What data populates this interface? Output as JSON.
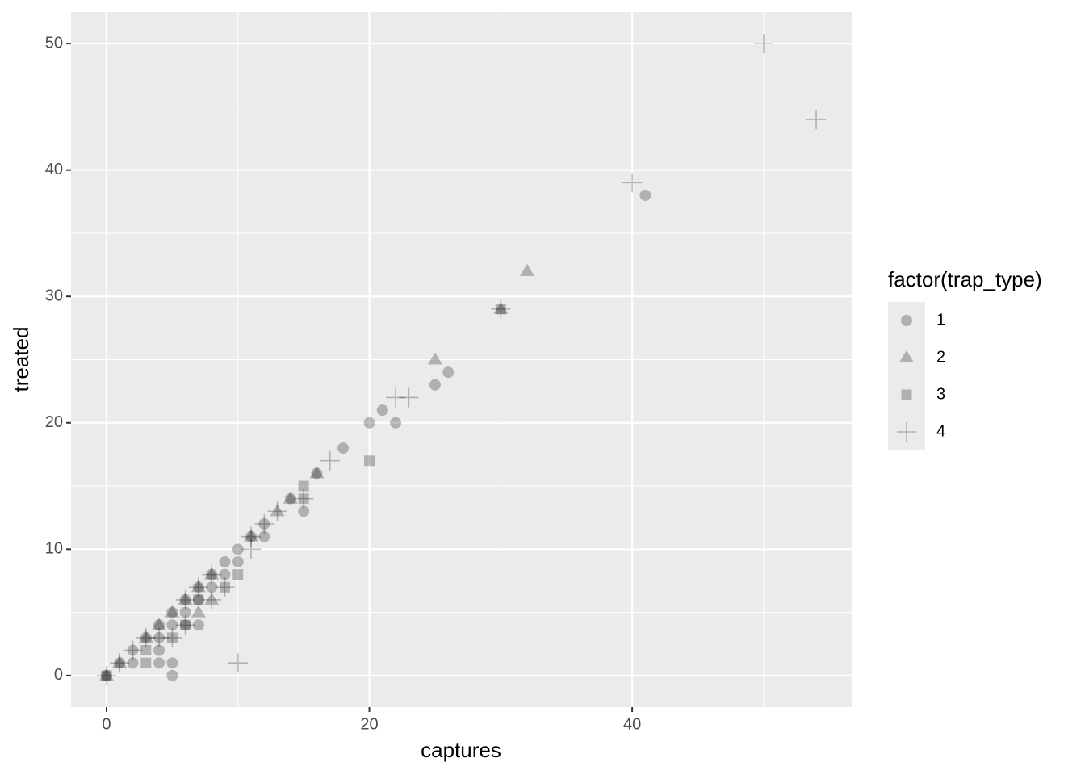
{
  "chart_data": {
    "type": "scatter",
    "x_label": "captures",
    "y_label": "treated",
    "legend_title": "factor(trap_type)",
    "legend_position": "right",
    "xlim": [
      -2.7,
      56.7
    ],
    "ylim": [
      -2.5,
      52.5
    ],
    "xticks": [
      0,
      20,
      40
    ],
    "yticks": [
      0,
      10,
      20,
      30,
      40,
      50
    ],
    "xminor": [
      10,
      30,
      50
    ],
    "yminor": [
      5,
      15,
      25,
      35,
      45
    ],
    "grid": true,
    "alpha": 0.25,
    "series": [
      {
        "name": "1",
        "shape": "circle",
        "color": "#000000",
        "x": [
          0,
          1,
          2,
          2,
          3,
          4,
          4,
          4,
          4,
          5,
          5,
          5,
          5,
          6,
          6,
          6,
          7,
          7,
          7,
          8,
          8,
          9,
          9,
          10,
          10,
          11,
          12,
          12,
          14,
          15,
          16,
          18,
          20,
          21,
          22,
          25,
          26,
          41
        ],
        "values": [
          0,
          1,
          2,
          1,
          3,
          4,
          3,
          2,
          1,
          5,
          4,
          1,
          0,
          6,
          5,
          4,
          7,
          6,
          4,
          8,
          7,
          9,
          8,
          10,
          9,
          11,
          12,
          11,
          14,
          13,
          16,
          18,
          20,
          21,
          20,
          23,
          24,
          38
        ]
      },
      {
        "name": "2",
        "shape": "triangle",
        "color": "#000000",
        "x": [
          0,
          1,
          3,
          4,
          5,
          6,
          7,
          7,
          8,
          8,
          11,
          13,
          14,
          16,
          25,
          30,
          32
        ],
        "values": [
          0,
          1,
          3,
          4,
          5,
          6,
          7,
          5,
          6,
          8,
          11,
          13,
          14,
          16,
          25,
          29,
          32
        ]
      },
      {
        "name": "3",
        "shape": "square",
        "color": "#000000",
        "x": [
          0,
          3,
          3,
          5,
          6,
          7,
          9,
          10,
          15,
          15,
          20,
          30
        ],
        "values": [
          0,
          1,
          2,
          3,
          4,
          6,
          7,
          8,
          15,
          14,
          17,
          29
        ]
      },
      {
        "name": "4",
        "shape": "plus",
        "color": "#000000",
        "x": [
          0,
          1,
          2,
          3,
          4,
          5,
          6,
          6,
          7,
          8,
          8,
          9,
          10,
          11,
          11,
          12,
          13,
          15,
          17,
          22,
          23,
          30,
          40,
          50,
          54
        ],
        "values": [
          0,
          1,
          2,
          3,
          3,
          3,
          4,
          6,
          7,
          8,
          6,
          7,
          1,
          10,
          11,
          12,
          13,
          14,
          17,
          22,
          22,
          29,
          39,
          50,
          44
        ]
      }
    ]
  }
}
